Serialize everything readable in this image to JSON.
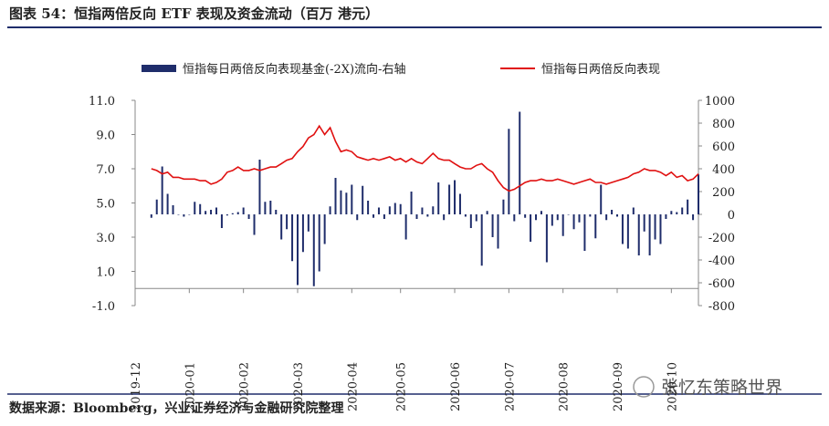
{
  "chart_data": {
    "type": "bar-line",
    "title": "图表 54：恒指两倍反向 ETF 表现及资金流动（百万 港元）",
    "categories": [
      "2019-12",
      null,
      null,
      null,
      null,
      null,
      null,
      null,
      null,
      null,
      "2020-01",
      null,
      null,
      null,
      null,
      null,
      null,
      null,
      null,
      null,
      "2020-02",
      null,
      null,
      null,
      null,
      null,
      null,
      null,
      null,
      null,
      "2020-03",
      null,
      null,
      null,
      null,
      null,
      null,
      null,
      null,
      null,
      "2020-04",
      null,
      null,
      null,
      null,
      null,
      null,
      null,
      null,
      "2020-05",
      null,
      null,
      null,
      null,
      null,
      null,
      null,
      null,
      null,
      "2020-06",
      null,
      null,
      null,
      null,
      null,
      null,
      null,
      null,
      null,
      "2020-07",
      null,
      null,
      null,
      null,
      null,
      null,
      null,
      null,
      null,
      "2020-08",
      null,
      null,
      null,
      null,
      null,
      null,
      null,
      null,
      null,
      "2020-09",
      null,
      null,
      null,
      null,
      null,
      null,
      null,
      null,
      null,
      "2020-10",
      null,
      null,
      null,
      null,
      null
    ],
    "series": [
      {
        "name": "恒指每日两倍反向表现基金(-2X)流向-右轴",
        "color": "#1f2d6b",
        "axis": "y2",
        "values": [
          null,
          null,
          null,
          -30,
          130,
          420,
          180,
          80,
          0,
          -20,
          0,
          110,
          90,
          30,
          40,
          60,
          -120,
          -10,
          10,
          20,
          60,
          -40,
          -180,
          480,
          110,
          120,
          40,
          -220,
          -130,
          -410,
          -620,
          -330,
          -150,
          -630,
          -500,
          -260,
          70,
          320,
          210,
          190,
          260,
          -50,
          250,
          120,
          -30,
          60,
          -40,
          70,
          100,
          90,
          -220,
          200,
          -40,
          60,
          -20,
          70,
          280,
          -50,
          260,
          300,
          180,
          -20,
          -120,
          -60,
          -450,
          30,
          -200,
          -300,
          130,
          750,
          -60,
          900,
          -30,
          -240,
          -50,
          30,
          -420,
          -100,
          -50,
          -190,
          0,
          -130,
          -70,
          -320,
          -20,
          -210,
          260,
          -50,
          40,
          -20,
          -260,
          -300,
          60,
          -360,
          -150,
          -360,
          -220,
          -260,
          -40,
          30,
          20,
          60,
          130,
          -50,
          350
        ]
      },
      {
        "name": "恒指每日两倍反向表现",
        "color": "#e01010",
        "values": [
          null,
          null,
          null,
          7.0,
          6.9,
          6.7,
          6.8,
          6.5,
          6.5,
          6.4,
          6.4,
          6.4,
          6.3,
          6.3,
          6.1,
          6.2,
          6.4,
          6.8,
          6.9,
          7.1,
          6.9,
          6.9,
          7.0,
          6.9,
          7.0,
          7.1,
          7.1,
          7.3,
          7.5,
          7.6,
          8.0,
          8.3,
          8.8,
          9.0,
          9.5,
          9.0,
          9.4,
          8.6,
          8.0,
          8.1,
          8.0,
          7.7,
          7.6,
          7.5,
          7.6,
          7.5,
          7.6,
          7.7,
          7.5,
          7.6,
          7.4,
          7.6,
          7.4,
          7.3,
          7.6,
          7.9,
          7.6,
          7.5,
          7.5,
          7.3,
          7.1,
          7.0,
          7.0,
          7.2,
          7.3,
          7.0,
          6.8,
          6.3,
          5.9,
          5.7,
          5.8,
          6.0,
          6.2,
          6.3,
          6.3,
          6.4,
          6.3,
          6.3,
          6.4,
          6.3,
          6.2,
          6.1,
          6.2,
          6.3,
          6.4,
          6.2,
          6.2,
          6.1,
          6.2,
          6.3,
          6.4,
          6.5,
          6.7,
          6.8,
          7.0,
          6.9,
          6.9,
          6.8,
          6.6,
          6.8,
          6.5,
          6.6,
          6.3,
          6.4,
          6.7
        ]
      }
    ],
    "ylim": [
      -1,
      11
    ],
    "yticks": [
      {
        "value": 11,
        "label": "11.0"
      },
      {
        "value": 9,
        "label": "9.0"
      },
      {
        "value": 7,
        "label": "7.0"
      },
      {
        "value": 5,
        "label": "5.0"
      },
      {
        "value": 3,
        "label": "3.0"
      },
      {
        "value": 1,
        "label": "1.0"
      },
      {
        "value": -1,
        "label": "-1.0"
      }
    ],
    "y2lim": [
      -800,
      1000
    ],
    "y2ticks": [
      1000,
      800,
      600,
      400,
      200,
      0,
      -200,
      -400,
      -600,
      -800
    ],
    "legend": "top"
  },
  "source": "数据来源：Bloomberg，兴业证券经济与金融研究院整理",
  "watermark": "张忆东策略世界"
}
